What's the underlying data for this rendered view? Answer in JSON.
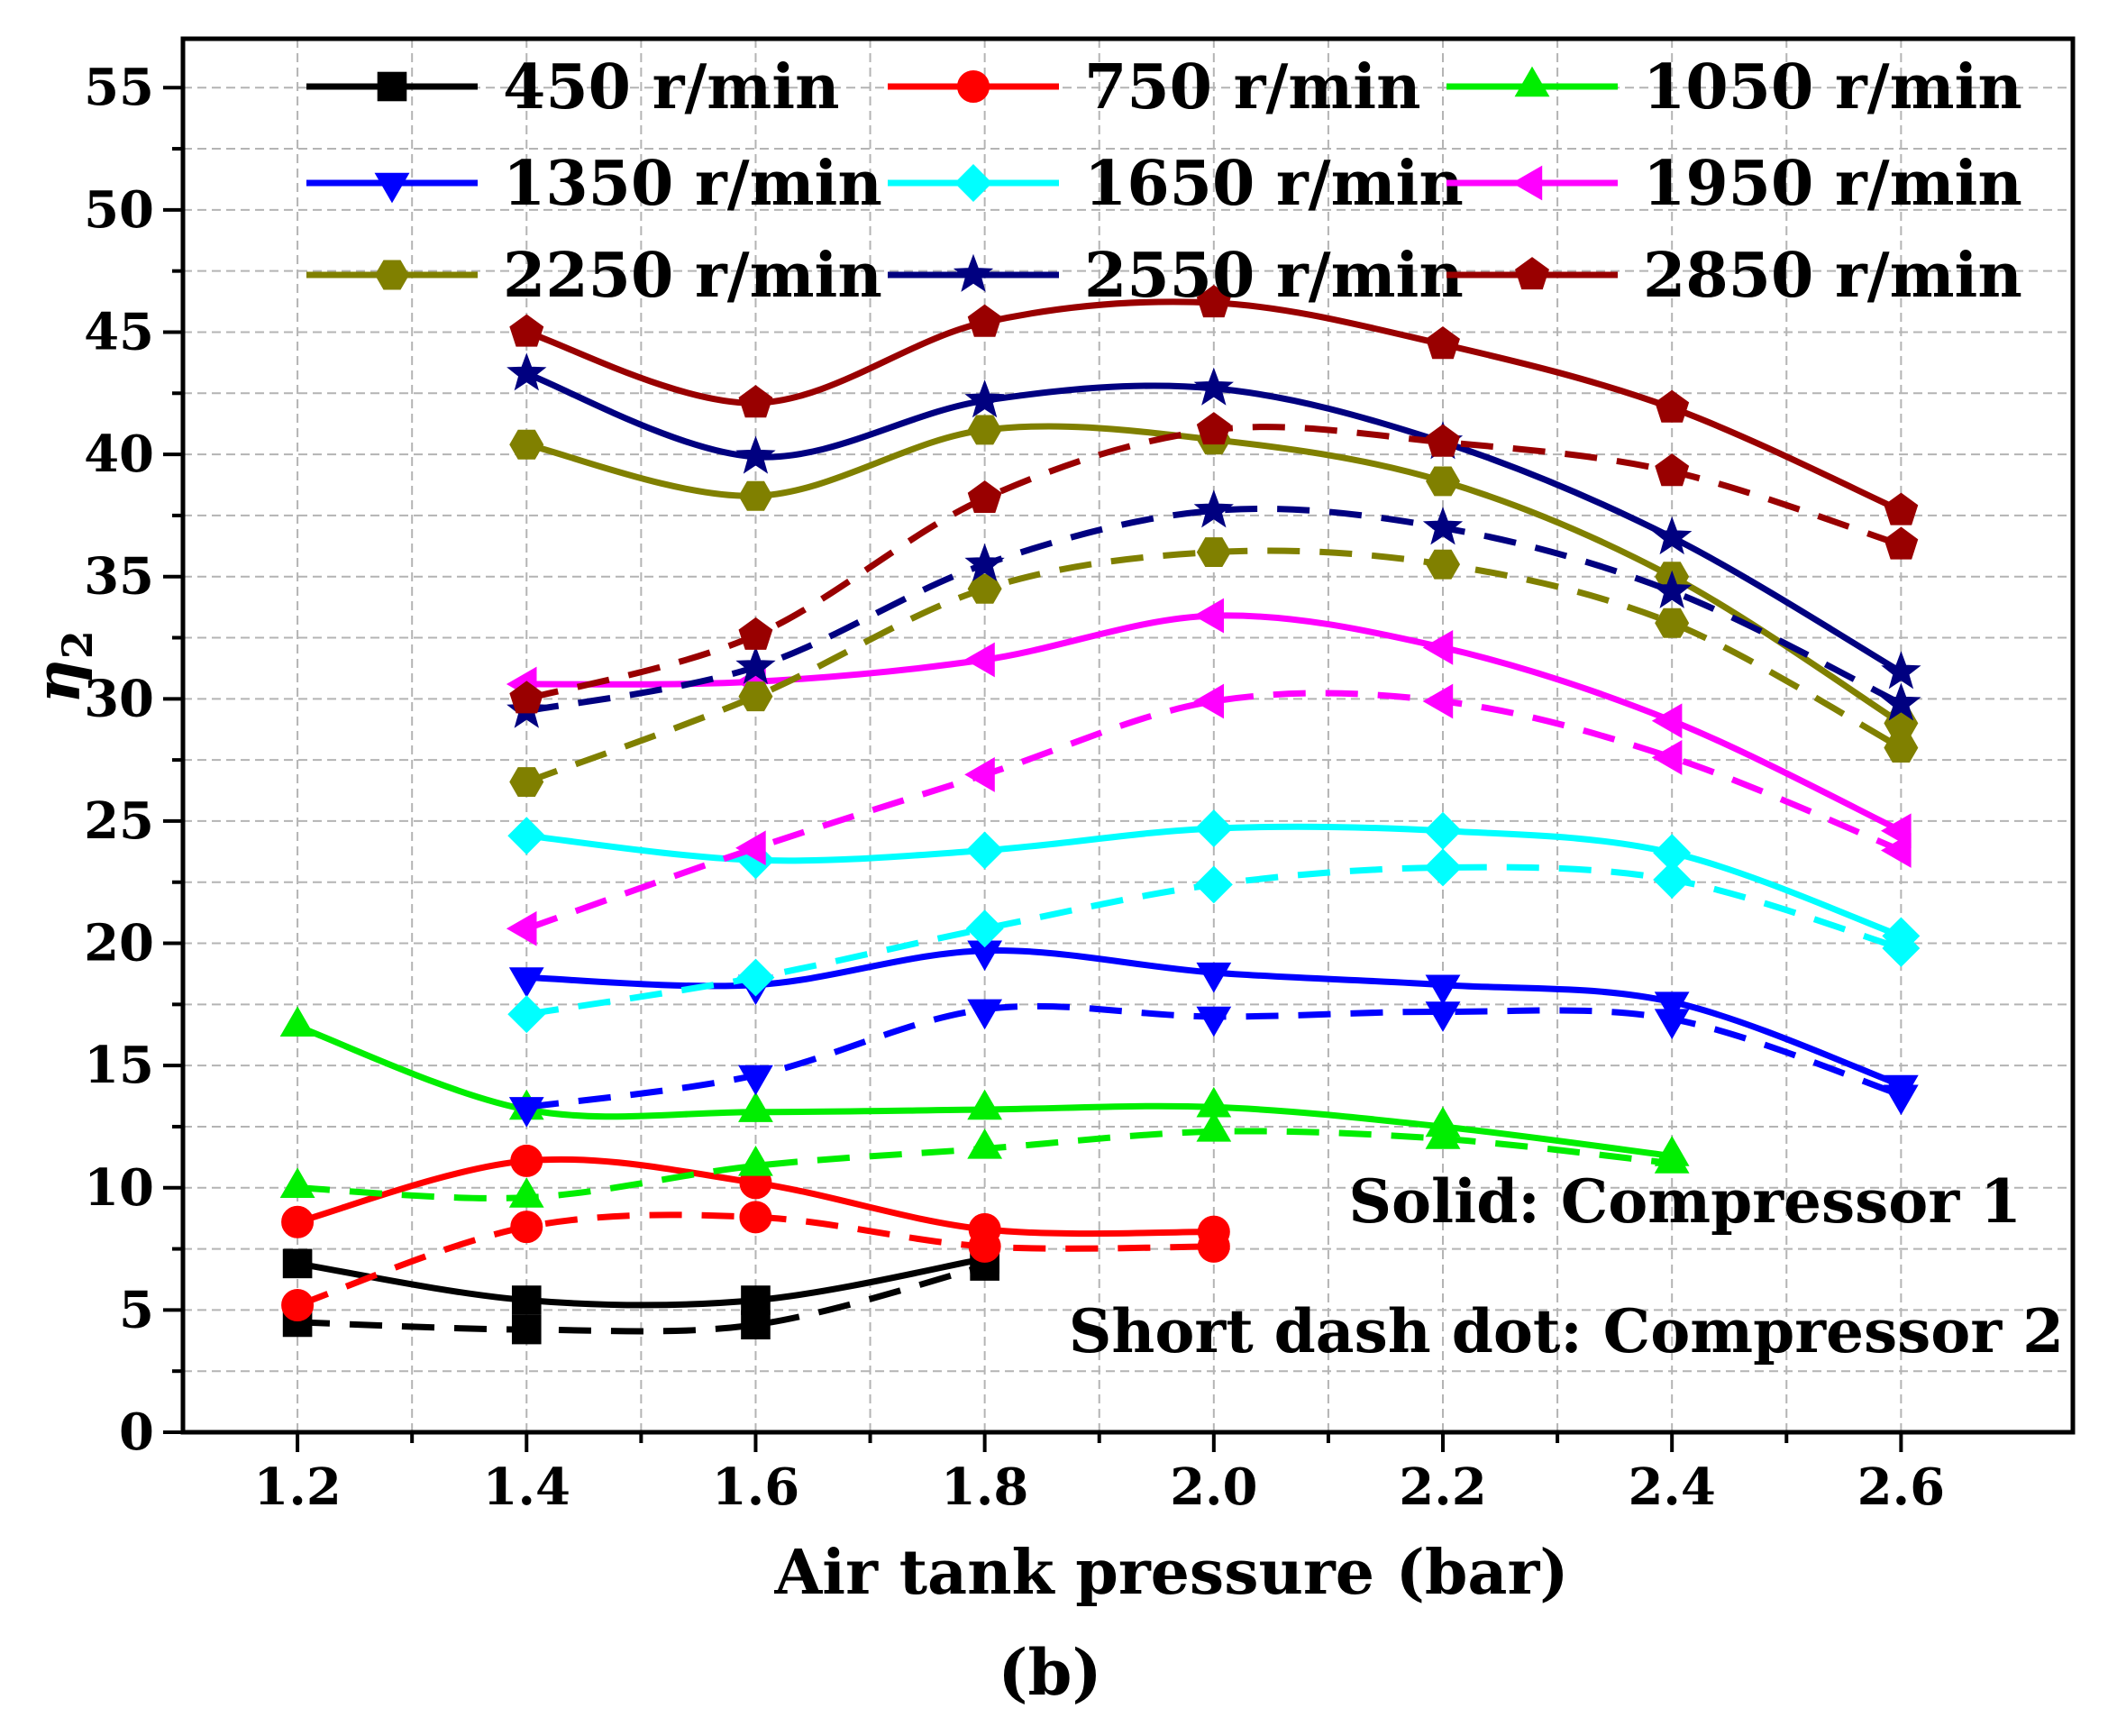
{
  "chart_data": {
    "type": "line",
    "title": "",
    "xlabel": "Air tank pressure (bar)",
    "ylabel": "η",
    "ylabel_subscript": "2",
    "panel_label": "(b)",
    "xlim": [
      1.1,
      2.75
    ],
    "ylim": [
      0,
      57
    ],
    "xticks": [
      1.2,
      1.4,
      1.6,
      1.8,
      2.0,
      2.2,
      2.4,
      2.6
    ],
    "xtick_labels": [
      "1.2",
      "1.4",
      "1.6",
      "1.8",
      "2.0",
      "2.2",
      "2.4",
      "2.6"
    ],
    "yticks": [
      0,
      5,
      10,
      15,
      20,
      25,
      30,
      35,
      40,
      45,
      50,
      55
    ],
    "ytick_labels": [
      "0",
      "5",
      "10",
      "15",
      "20",
      "25",
      "30",
      "35",
      "40",
      "45",
      "50",
      "55"
    ],
    "grid": true,
    "legend_position": "top",
    "notes": [
      "Solid: Compressor 1",
      "Short dash dot: Compressor 2"
    ],
    "series": [
      {
        "name": "450 r/min",
        "color": "#000000",
        "marker": "square",
        "compressor1": {
          "x": [
            1.2,
            1.4,
            1.6,
            1.8
          ],
          "y": [
            6.9,
            5.4,
            5.4,
            7.1
          ]
        },
        "compressor2": {
          "x": [
            1.2,
            1.4,
            1.6,
            1.8
          ],
          "y": [
            4.5,
            4.2,
            4.4,
            6.8
          ]
        }
      },
      {
        "name": "750 r/min",
        "color": "#ff0000",
        "marker": "circle",
        "compressor1": {
          "x": [
            1.2,
            1.4,
            1.6,
            1.8,
            2.0
          ],
          "y": [
            8.6,
            11.1,
            10.2,
            8.3,
            8.2
          ]
        },
        "compressor2": {
          "x": [
            1.2,
            1.4,
            1.6,
            1.8,
            2.0
          ],
          "y": [
            5.2,
            8.4,
            8.8,
            7.6,
            7.6
          ]
        }
      },
      {
        "name": "1050 r/min",
        "color": "#00ee00",
        "marker": "triangle-up",
        "compressor1": {
          "x": [
            1.2,
            1.4,
            1.6,
            1.8,
            2.0,
            2.2,
            2.4
          ],
          "y": [
            16.6,
            13.2,
            13.1,
            13.2,
            13.3,
            12.5,
            11.3
          ]
        },
        "compressor2": {
          "x": [
            1.2,
            1.4,
            1.6,
            1.8,
            2.0,
            2.2,
            2.4
          ],
          "y": [
            10.0,
            9.6,
            10.9,
            11.6,
            12.3,
            12.0,
            11.0
          ]
        }
      },
      {
        "name": "1350 r/min",
        "color": "#0000ff",
        "marker": "triangle-down",
        "compressor1": {
          "x": [
            1.4,
            1.6,
            1.8,
            2.0,
            2.2,
            2.4,
            2.6
          ],
          "y": [
            18.6,
            18.3,
            19.7,
            18.8,
            18.3,
            17.6,
            14.2
          ]
        },
        "compressor2": {
          "x": [
            1.4,
            1.6,
            1.8,
            2.0,
            2.2,
            2.4,
            2.6
          ],
          "y": [
            13.3,
            14.6,
            17.3,
            17.0,
            17.2,
            16.9,
            13.8
          ]
        }
      },
      {
        "name": "1650 r/min",
        "color": "#00ffff",
        "marker": "diamond",
        "compressor1": {
          "x": [
            1.4,
            1.6,
            1.8,
            2.0,
            2.2,
            2.4,
            2.6
          ],
          "y": [
            24.4,
            23.4,
            23.8,
            24.7,
            24.6,
            23.7,
            20.3
          ]
        },
        "compressor2": {
          "x": [
            1.4,
            1.6,
            1.8,
            2.0,
            2.2,
            2.4,
            2.6
          ],
          "y": [
            17.1,
            18.6,
            20.6,
            22.4,
            23.1,
            22.6,
            19.8
          ]
        }
      },
      {
        "name": "1950 r/min",
        "color": "#ff00ff",
        "marker": "triangle-left",
        "compressor1": {
          "x": [
            1.4,
            1.6,
            1.8,
            2.0,
            2.2,
            2.4,
            2.6
          ],
          "y": [
            30.6,
            30.7,
            31.6,
            33.4,
            32.1,
            29.1,
            24.6
          ]
        },
        "compressor2": {
          "x": [
            1.4,
            1.6,
            1.8,
            2.0,
            2.2,
            2.4,
            2.6
          ],
          "y": [
            20.6,
            23.9,
            26.9,
            29.9,
            29.9,
            27.6,
            23.8
          ]
        }
      },
      {
        "name": "2250 r/min",
        "color": "#808000",
        "marker": "hexagon",
        "compressor1": {
          "x": [
            1.4,
            1.6,
            1.8,
            2.0,
            2.2,
            2.4,
            2.6
          ],
          "y": [
            40.4,
            38.3,
            41.0,
            40.6,
            38.9,
            35.0,
            29.0
          ]
        },
        "compressor2": {
          "x": [
            1.4,
            1.6,
            1.8,
            2.0,
            2.2,
            2.4,
            2.6
          ],
          "y": [
            26.6,
            30.1,
            34.5,
            36.0,
            35.5,
            33.1,
            28.0
          ]
        }
      },
      {
        "name": "2550 r/min",
        "color": "#000080",
        "marker": "star",
        "compressor1": {
          "x": [
            1.4,
            1.6,
            1.8,
            2.0,
            2.2,
            2.4,
            2.6
          ],
          "y": [
            43.3,
            39.9,
            42.2,
            42.7,
            40.5,
            36.6,
            31.1
          ]
        },
        "compressor2": {
          "x": [
            1.4,
            1.6,
            1.8,
            2.0,
            2.2,
            2.4,
            2.6
          ],
          "y": [
            29.5,
            31.3,
            35.5,
            37.7,
            37.0,
            34.4,
            29.8
          ]
        }
      },
      {
        "name": "2850 r/min",
        "color": "#990000",
        "marker": "pentagon",
        "compressor1": {
          "x": [
            1.4,
            1.6,
            1.8,
            2.0,
            2.2,
            2.4,
            2.6
          ],
          "y": [
            45.0,
            42.1,
            45.4,
            46.2,
            44.5,
            41.9,
            37.7
          ]
        },
        "compressor2": {
          "x": [
            1.4,
            1.6,
            1.8,
            2.0,
            2.2,
            2.4,
            2.6
          ],
          "y": [
            30.0,
            32.6,
            38.2,
            41.0,
            40.5,
            39.3,
            36.3
          ]
        }
      }
    ]
  }
}
